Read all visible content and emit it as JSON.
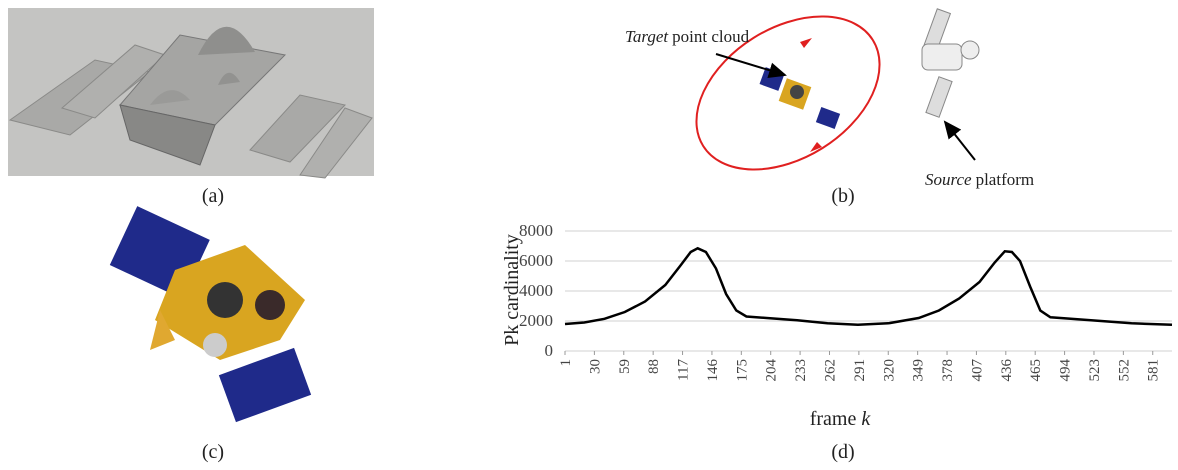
{
  "captions": [
    "(a)",
    "(b)",
    "(c)",
    "(d)"
  ],
  "diagram": {
    "target_label": {
      "emphasis": "Target",
      "text": "point cloud"
    },
    "source_label": {
      "emphasis": "Source",
      "text": "platform"
    }
  },
  "chart_data": {
    "type": "line",
    "y_label": "Pk cardinality",
    "x_label": "frame",
    "x_label_var": "k",
    "x": [
      1,
      20,
      40,
      60,
      80,
      100,
      115,
      125,
      132,
      140,
      150,
      160,
      170,
      180,
      200,
      230,
      260,
      290,
      320,
      350,
      370,
      390,
      410,
      425,
      435,
      442,
      450,
      460,
      470,
      480,
      500,
      530,
      560,
      600
    ],
    "values": [
      1800,
      1900,
      2150,
      2600,
      3300,
      4400,
      5700,
      6600,
      6850,
      6600,
      5500,
      3800,
      2700,
      2300,
      2200,
      2050,
      1850,
      1750,
      1850,
      2200,
      2700,
      3500,
      4600,
      5900,
      6650,
      6600,
      6000,
      4300,
      2700,
      2250,
      2150,
      2000,
      1850,
      1750
    ],
    "color": "#000000",
    "xlim": [
      1,
      600
    ],
    "xticks": [
      1,
      30,
      59,
      88,
      117,
      146,
      175,
      204,
      233,
      262,
      291,
      320,
      349,
      378,
      407,
      436,
      465,
      494,
      523,
      552,
      581
    ],
    "ylim": [
      0,
      8000
    ],
    "yticks": [
      0,
      2000,
      4000,
      6000,
      8000
    ],
    "grid": true
  }
}
